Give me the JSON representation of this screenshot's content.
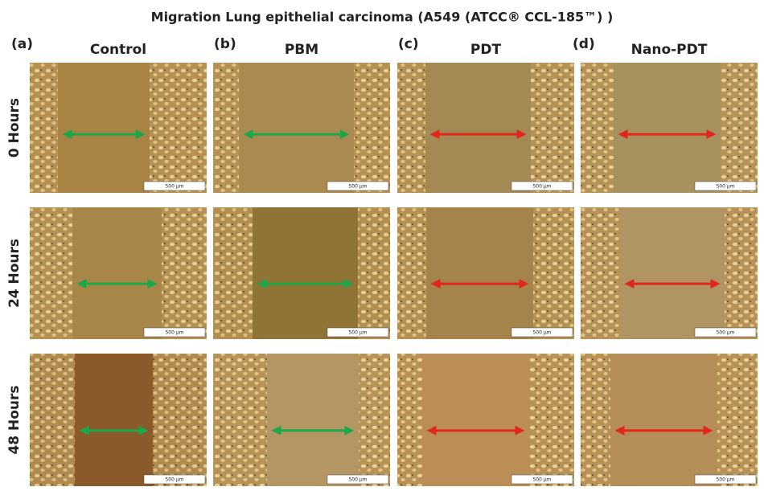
{
  "title": "Migration Lung epithelial carcinoma (A549 (ATCC® CCL-185™) )",
  "columns": [
    {
      "letter": "(a)",
      "name": "Control",
      "arrow_color": "#1aa84a"
    },
    {
      "letter": "(b)",
      "name": "PBM",
      "arrow_color": "#1aa84a"
    },
    {
      "letter": "(c)",
      "name": "PDT",
      "arrow_color": "#e3261c"
    },
    {
      "letter": "(d)",
      "name": "Nano-PDT",
      "arrow_color": "#e3261c"
    }
  ],
  "rows": [
    "0 Hours",
    "24 Hours",
    "48 Hours"
  ],
  "scale_bar": "500 μm"
}
